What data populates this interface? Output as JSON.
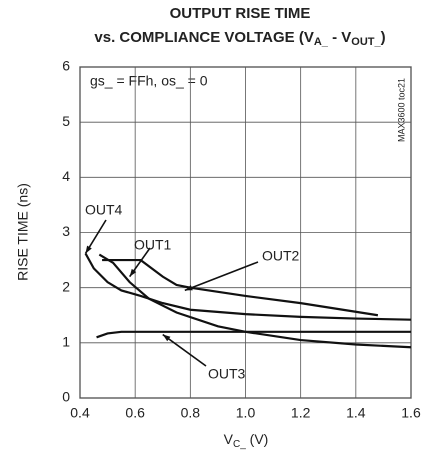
{
  "chart_data": {
    "type": "line",
    "title": "OUTPUT RISE TIME",
    "subtitle_parts": [
      "vs. COMPLIANCE VOLTAGE (V",
      "A_",
      " - V",
      "OUT_",
      ")"
    ],
    "xlabel_parts": [
      "V",
      "C_",
      " (V)"
    ],
    "ylabel": "RISE TIME (ns)",
    "annotations": [
      "gs_ = FFh, os_ = 0",
      "MAX3600 toc21"
    ],
    "xlim": [
      0.4,
      1.6
    ],
    "xticks": [
      0.4,
      0.6,
      0.8,
      {
        "value": 1,
        "label": "1.0"
      },
      1.2,
      1.4,
      1.6
    ],
    "ylim": [
      0,
      6
    ],
    "yticks": [
      0,
      1,
      2,
      3,
      4,
      5,
      6
    ],
    "grid": true,
    "series": [
      {
        "name": "OUT1",
        "color": "#111111",
        "x": [
          0.47,
          0.52,
          0.58,
          0.65,
          0.75,
          0.9,
          1.0,
          1.2,
          1.4,
          1.6
        ],
        "values": [
          2.6,
          2.45,
          2.1,
          1.8,
          1.55,
          1.3,
          1.2,
          1.05,
          0.97,
          0.92
        ]
      },
      {
        "name": "OUT2",
        "color": "#111111",
        "x": [
          0.48,
          0.55,
          0.62,
          0.7,
          0.75,
          0.8,
          1.0,
          1.2,
          1.48
        ],
        "values": [
          2.5,
          2.5,
          2.5,
          2.2,
          2.05,
          2.0,
          1.85,
          1.72,
          1.5
        ]
      },
      {
        "name": "OUT3",
        "color": "#111111",
        "x": [
          0.46,
          0.5,
          0.55,
          0.7,
          1.0,
          1.6
        ],
        "values": [
          1.1,
          1.17,
          1.2,
          1.2,
          1.2,
          1.2
        ]
      },
      {
        "name": "OUT4",
        "color": "#111111",
        "x": [
          0.42,
          0.45,
          0.5,
          0.55,
          0.62,
          0.7,
          0.8,
          1.0,
          1.2,
          1.4,
          1.6
        ],
        "values": [
          2.62,
          2.35,
          2.1,
          1.95,
          1.85,
          1.72,
          1.6,
          1.52,
          1.47,
          1.44,
          1.42
        ]
      }
    ]
  }
}
